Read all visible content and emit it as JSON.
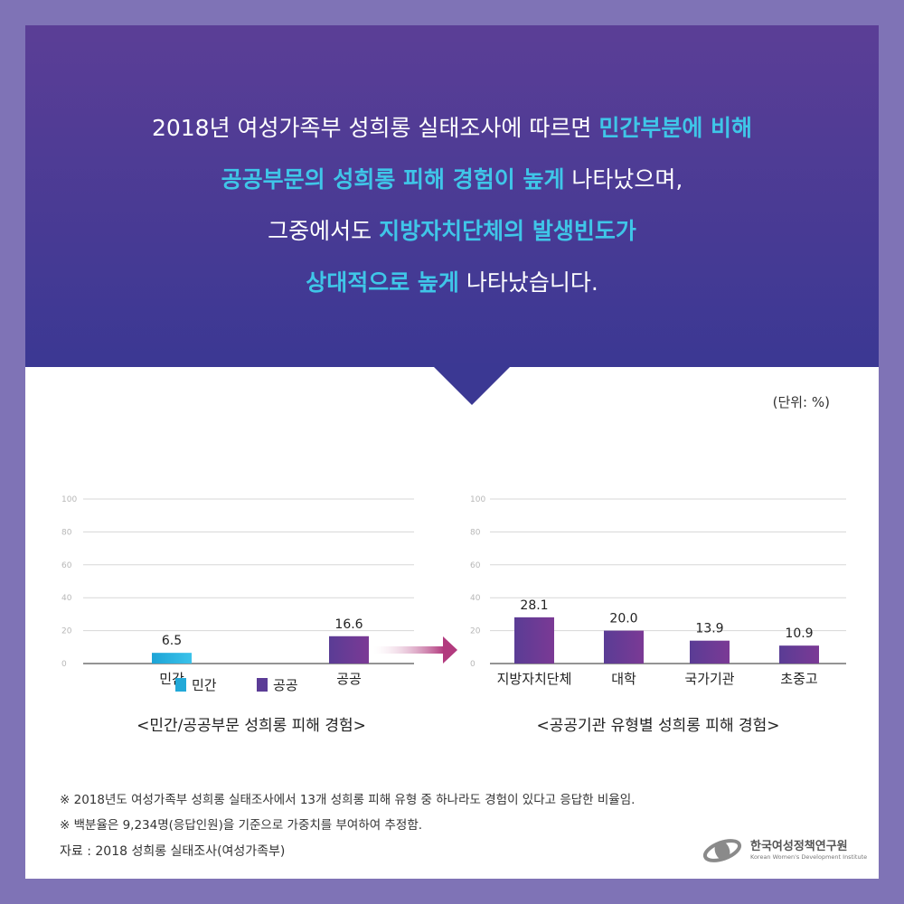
{
  "headline": {
    "line1_a": "2018년 여성가족부 성희롱 실태조사에 따르면 ",
    "line1_b": "민간부분에 비해",
    "line2_a": "공공부문의 성희롱 피해 경험이 높게",
    "line2_b": " 나타났으며,",
    "line3_a": "그중에서도 ",
    "line3_b": "지방자치단체의 발생빈도가",
    "line4_a": "상대적으로 높게",
    "line4_b": " 나타났습니다."
  },
  "unit_label": "(단위: %)",
  "colors": {
    "private": "#22a9d8",
    "public": "#5b3c96",
    "arrow": "#b23a7e",
    "highlight": "#3fc6e8"
  },
  "chart_data": [
    {
      "type": "bar",
      "categories": [
        "민간",
        "공공"
      ],
      "values": [
        6.5,
        16.6
      ],
      "value_labels": [
        "6.5",
        "16.6"
      ],
      "ylim": [
        0,
        100
      ],
      "yticks": [
        "0",
        "20",
        "40",
        "60",
        "80",
        "100"
      ],
      "legend": [
        {
          "label": "민간",
          "color": "#22a9d8"
        },
        {
          "label": "공공",
          "color": "#5b3c96"
        }
      ],
      "legend_position": "bottom-left",
      "grid": true,
      "caption": "<민간/공공부문 성희롱 피해 경험>"
    },
    {
      "type": "bar",
      "categories": [
        "지방자치단체",
        "대학",
        "국가기관",
        "초중고"
      ],
      "values": [
        28.1,
        20.0,
        13.9,
        10.9
      ],
      "value_labels": [
        "28.1",
        "20.0",
        "13.9",
        "10.9"
      ],
      "ylim": [
        0,
        100
      ],
      "yticks": [
        "0",
        "20",
        "40",
        "60",
        "80",
        "100"
      ],
      "grid": true,
      "caption": "<공공기관 유형별 성희롱 피해 경험>"
    }
  ],
  "notes": {
    "note1": "※ 2018년도 여성가족부 성희롱 실태조사에서 13개 성희롱 피해 유형 중 하나라도 경험이 있다고 응답한 비율임.",
    "note2": "※ 백분율은 9,234명(응답인원)을 기준으로 가중치를 부여하여 추정함.",
    "source": "자료 : 2018 성희롱 실태조사(여성가족부)"
  },
  "logo": {
    "icon": "kwdi-logo-icon",
    "name_kr": "한국여성정책연구원",
    "name_en": "Korean Women's Development Institute"
  }
}
